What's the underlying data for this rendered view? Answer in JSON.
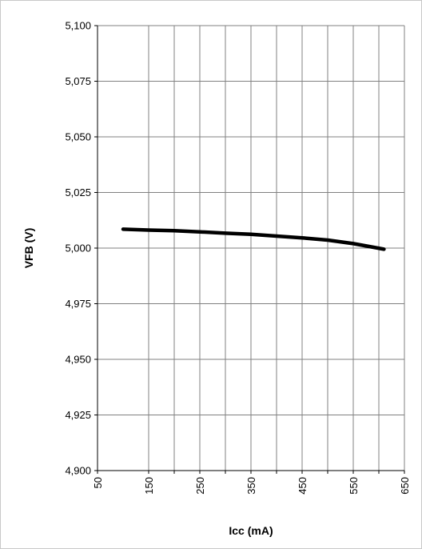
{
  "chart_data": {
    "type": "line",
    "title": "",
    "xlabel": "Icc (mA)",
    "ylabel": "VFB (V)",
    "xlim": [
      50,
      650
    ],
    "ylim": [
      4.9,
      5.1
    ],
    "x_ticks": [
      50,
      150,
      250,
      350,
      450,
      550,
      650
    ],
    "y_ticks": [
      5.1,
      5.075,
      5.05,
      5.025,
      5.0,
      4.975,
      4.95,
      4.925,
      4.9
    ],
    "x_tick_labels": [
      "50",
      "150",
      "250",
      "350",
      "450",
      "550",
      "650"
    ],
    "y_tick_labels": [
      "5,100",
      "5,075",
      "5,050",
      "5,025",
      "5,000",
      "4,975",
      "4,950",
      "4,925",
      "4,900"
    ],
    "x_grid_values": [
      50,
      150,
      200,
      250,
      300,
      350,
      400,
      450,
      500,
      550,
      600,
      650
    ],
    "grid": true,
    "legend": "none",
    "series": [
      {
        "color": "#000000",
        "x": [
          100,
          150,
          200,
          250,
          300,
          350,
          400,
          450,
          500,
          550,
          610
        ],
        "y": [
          5.0085,
          5.0081,
          5.0078,
          5.0073,
          5.0067,
          5.0062,
          5.0054,
          5.0046,
          5.0036,
          5.002,
          4.9995
        ]
      }
    ]
  }
}
